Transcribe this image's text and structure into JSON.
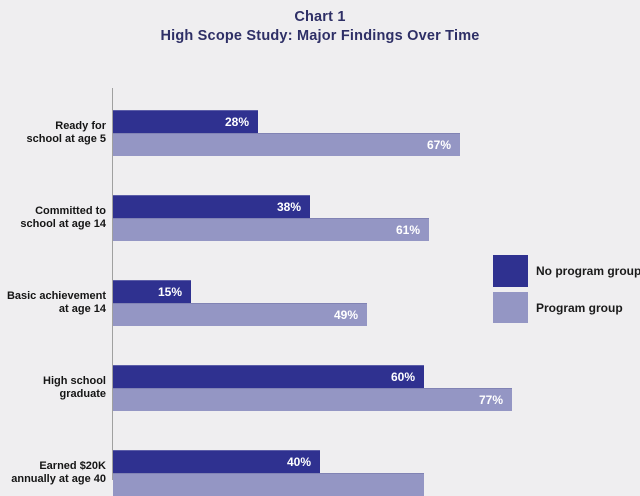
{
  "title": {
    "line1": "Chart 1",
    "line2": "High Scope Study: Major Findings Over Time"
  },
  "legend": [
    {
      "label": "No program group",
      "color": "#2f3190"
    },
    {
      "label": "Program group",
      "color": "#9496c4"
    }
  ],
  "chart_data": {
    "type": "bar",
    "orientation": "horizontal",
    "title": "Chart 1 — High Scope Study: Major Findings Over Time",
    "categories": [
      "Ready for school at age 5",
      "Committed to school at age 14",
      "Basic achievement at age 14",
      "High school graduate",
      "Earned $20K annually at age 40"
    ],
    "category_label_lines": [
      [
        "Ready for",
        "school at age 5"
      ],
      [
        "Committed to",
        "school at age 14"
      ],
      [
        "Basic achievement",
        "at age 14"
      ],
      [
        "High school",
        "graduate"
      ],
      [
        "Earned $20K",
        "annually at age 40"
      ]
    ],
    "series": [
      {
        "name": "No program group",
        "color": "#2f3190",
        "values": [
          28,
          38,
          15,
          60,
          40
        ]
      },
      {
        "name": "Program group",
        "color": "#9496c4",
        "values": [
          67,
          61,
          49,
          77,
          60
        ]
      }
    ],
    "value_suffix": "%",
    "xlim": [
      0,
      100
    ],
    "grid": false,
    "legend_position": "right",
    "note": "Bottom category's Program-group bar and its value label are clipped by the image edge"
  },
  "colors": {
    "background": "#efeef0",
    "title_text": "#2e2f66",
    "category_text": "#151515",
    "value_text": "#ffffff",
    "axis_line": "#a0a0a0"
  }
}
